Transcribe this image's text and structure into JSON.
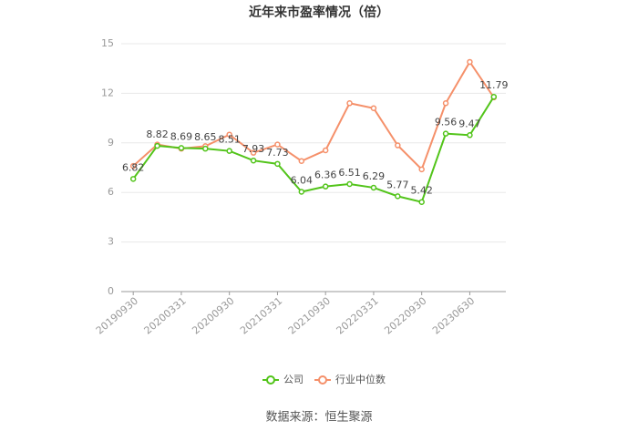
{
  "chart_data": {
    "type": "line",
    "title": "近年来市盈率情况（倍）",
    "categories": [
      "20190930",
      null,
      "20200331",
      null,
      "20200930",
      null,
      "20210331",
      null,
      "20210930",
      null,
      "20220331",
      null,
      "20220930",
      null,
      "20230630",
      null
    ],
    "series": [
      {
        "name": "公司",
        "color": "#52c41a",
        "values": [
          6.82,
          8.82,
          8.69,
          8.65,
          8.51,
          7.93,
          7.73,
          6.04,
          6.36,
          6.51,
          6.29,
          5.77,
          5.42,
          9.56,
          9.47,
          11.79
        ]
      },
      {
        "name": "行业中位数",
        "color": "#f5906a",
        "values": [
          7.6,
          8.9,
          8.65,
          8.8,
          9.5,
          8.4,
          8.9,
          7.9,
          8.55,
          11.4,
          11.1,
          8.85,
          7.4,
          11.4,
          13.9,
          11.75
        ]
      }
    ],
    "ylim": [
      0,
      15
    ],
    "yticks": [
      0,
      3,
      6,
      9,
      12,
      15
    ],
    "grid": true,
    "legend": "bottom",
    "source": "数据来源：恒生聚源"
  }
}
